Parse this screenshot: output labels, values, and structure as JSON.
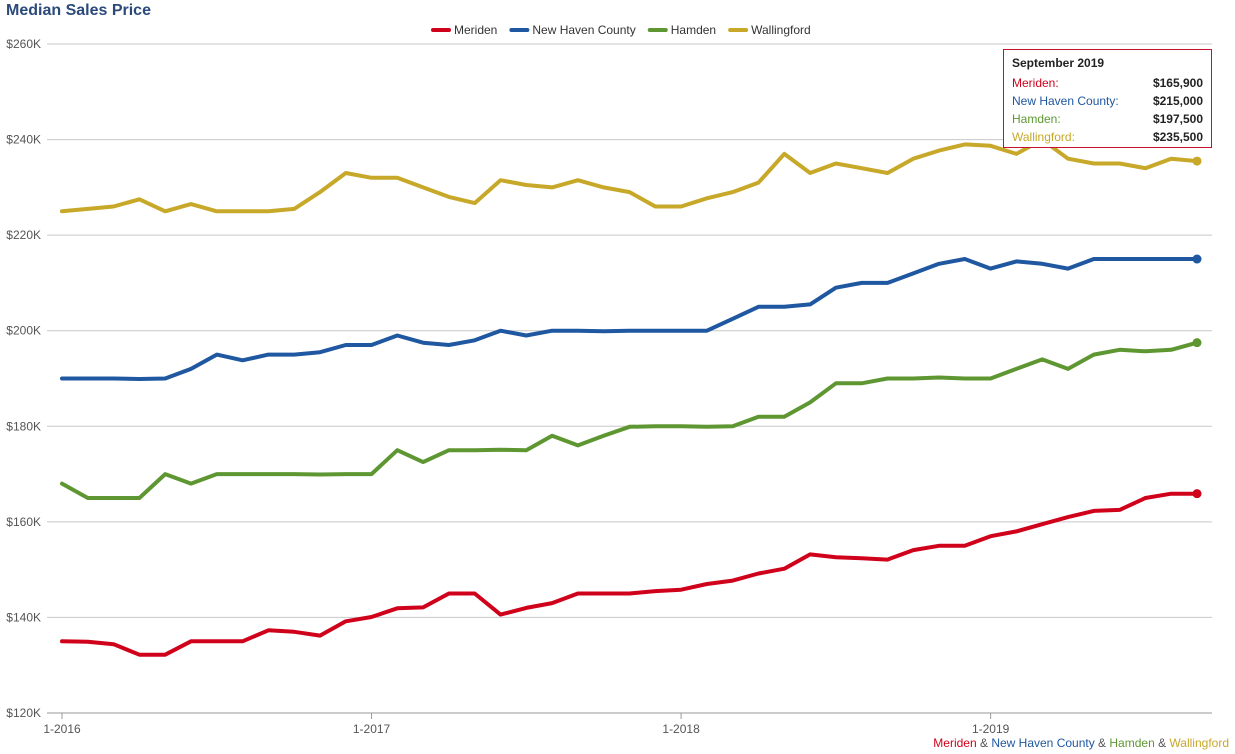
{
  "chart_data": {
    "type": "line",
    "title": "Median Sales Price",
    "ylim": [
      120000,
      260000
    ],
    "y_ticks": [
      120000,
      140000,
      160000,
      180000,
      200000,
      220000,
      240000,
      260000
    ],
    "y_tick_labels": [
      "$120K",
      "$140K",
      "$160K",
      "$180K",
      "$200K",
      "$220K",
      "$240K",
      "$260K"
    ],
    "x_start": "2016-01",
    "x_end": "2019-09",
    "x_ticks": [
      "2016-01",
      "2017-01",
      "2018-01",
      "2019-01"
    ],
    "x_tick_labels": [
      "1-2016",
      "1-2017",
      "1-2018",
      "1-2019"
    ],
    "legend_position": "top-center",
    "grid": true,
    "series": [
      {
        "name": "Meriden",
        "color": "#d0021b",
        "values": [
          135000,
          134900,
          134400,
          132200,
          132200,
          135000,
          135000,
          135000,
          137300,
          137000,
          136200,
          139200,
          140100,
          141900,
          142100,
          145000,
          145000,
          140600,
          142000,
          143000,
          145000,
          145000,
          145000,
          145500,
          145800,
          147000,
          147700,
          149200,
          150200,
          153200,
          152600,
          152400,
          152100,
          154100,
          155000,
          155000,
          157000,
          158000,
          159500,
          161000,
          162300,
          162500,
          165000,
          165900,
          165900
        ]
      },
      {
        "name": "New Haven County",
        "color": "#1f57a1",
        "values": [
          190000,
          190000,
          190000,
          189900,
          190000,
          192000,
          195000,
          193800,
          195000,
          195000,
          195500,
          197000,
          197000,
          199000,
          197500,
          197000,
          198000,
          200000,
          199000,
          200000,
          200000,
          199900,
          200000,
          200000,
          200000,
          200000,
          202500,
          205000,
          205000,
          205500,
          209000,
          210000,
          210000,
          212000,
          214000,
          215000,
          213000,
          214500,
          214000,
          213000,
          215000,
          215000,
          215000,
          215000,
          215000
        ]
      },
      {
        "name": "Hamden",
        "color": "#5e9732",
        "values": [
          168000,
          165000,
          165000,
          165000,
          170000,
          168000,
          170000,
          170000,
          170000,
          170000,
          169900,
          170000,
          170000,
          175000,
          172500,
          175000,
          175000,
          175100,
          175000,
          178000,
          176000,
          178000,
          179900,
          180000,
          180000,
          179900,
          180000,
          182000,
          182000,
          185000,
          189000,
          189000,
          190000,
          190000,
          190200,
          190000,
          190000,
          192000,
          194000,
          192000,
          195000,
          196000,
          195700,
          196000,
          197500
        ]
      },
      {
        "name": "Wallingford",
        "color": "#c7a829",
        "values": [
          225000,
          225500,
          226000,
          227500,
          225000,
          226500,
          225000,
          225000,
          225000,
          225500,
          229000,
          233000,
          232000,
          232000,
          230000,
          228000,
          226700,
          231500,
          230500,
          230000,
          231500,
          230000,
          229000,
          226000,
          226000,
          227700,
          229000,
          231000,
          237000,
          233000,
          235000,
          234000,
          233000,
          236000,
          237700,
          239000,
          238700,
          237000,
          240000,
          236000,
          235000,
          235000,
          234000,
          236000,
          235500
        ]
      }
    ]
  },
  "tooltip": {
    "title": "September 2019",
    "rows": [
      {
        "label": "Meriden:",
        "value": "$165,900",
        "color": "#d0021b"
      },
      {
        "label": "New Haven County:",
        "value": "$215,000",
        "color": "#1f57a1"
      },
      {
        "label": "Hamden:",
        "value": "$197,500",
        "color": "#5e9732"
      },
      {
        "label": "Wallingford:",
        "value": "$235,500",
        "color": "#c7a829"
      }
    ]
  },
  "credits": {
    "parts": [
      {
        "text": "Meriden",
        "color": "#d0021b"
      },
      {
        "text": " & ",
        "color": "#555555"
      },
      {
        "text": "New Haven County",
        "color": "#1f57a1"
      },
      {
        "text": " & ",
        "color": "#555555"
      },
      {
        "text": "Hamden",
        "color": "#5e9732"
      },
      {
        "text": " & ",
        "color": "#555555"
      },
      {
        "text": "Wallingford",
        "color": "#c7a829"
      }
    ]
  }
}
